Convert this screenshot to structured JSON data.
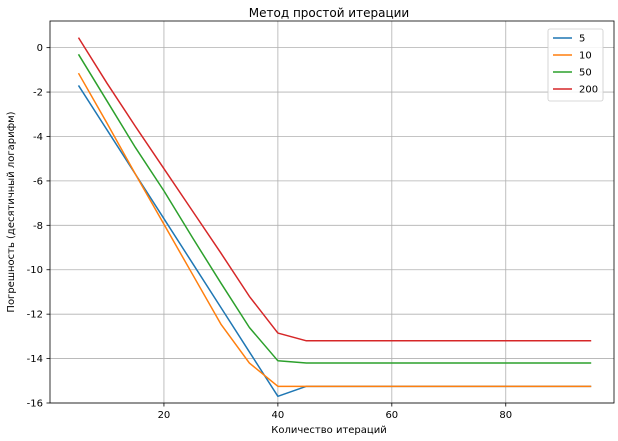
{
  "chart_data": {
    "type": "line",
    "title": "Метод простой итерации",
    "xlabel": "Количество итераций",
    "ylabel": "Погрешность (десятичный логарифм)",
    "xlim": [
      0,
      99
    ],
    "ylim": [
      -16,
      1.2
    ],
    "xticks": [
      20,
      40,
      60,
      80
    ],
    "yticks": [
      -16,
      -14,
      -12,
      -10,
      -8,
      -6,
      -4,
      -2,
      0
    ],
    "grid": true,
    "legend": "top-right",
    "x": [
      5,
      10,
      15,
      20,
      25,
      30,
      35,
      40,
      45,
      50,
      55,
      60,
      65,
      70,
      75,
      80,
      85,
      90,
      95
    ],
    "series": [
      {
        "name": "5",
        "color": "#1f77b4",
        "values": [
          -1.7,
          -3.7,
          -5.7,
          -7.7,
          -9.7,
          -11.7,
          -13.7,
          -15.7,
          -15.25,
          -15.25,
          -15.25,
          -15.25,
          -15.25,
          -15.25,
          -15.25,
          -15.25,
          -15.25,
          -15.25,
          -15.25
        ]
      },
      {
        "name": "10",
        "color": "#ff7f0e",
        "values": [
          -1.15,
          -3.4,
          -5.7,
          -7.95,
          -10.2,
          -12.45,
          -14.2,
          -15.25,
          -15.25,
          -15.25,
          -15.25,
          -15.25,
          -15.25,
          -15.25,
          -15.25,
          -15.25,
          -15.25,
          -15.25,
          -15.25
        ]
      },
      {
        "name": "50",
        "color": "#2ca02c",
        "values": [
          -0.3,
          -2.4,
          -4.5,
          -6.45,
          -8.55,
          -10.6,
          -12.6,
          -14.1,
          -14.2,
          -14.2,
          -14.2,
          -14.2,
          -14.2,
          -14.2,
          -14.2,
          -14.2,
          -14.2,
          -14.2,
          -14.2
        ]
      },
      {
        "name": "200",
        "color": "#d62728",
        "values": [
          0.45,
          -1.6,
          -3.55,
          -5.45,
          -7.35,
          -9.25,
          -11.2,
          -12.85,
          -13.2,
          -13.2,
          -13.2,
          -13.2,
          -13.2,
          -13.2,
          -13.2,
          -13.2,
          -13.2,
          -13.2,
          -13.2
        ]
      }
    ]
  }
}
